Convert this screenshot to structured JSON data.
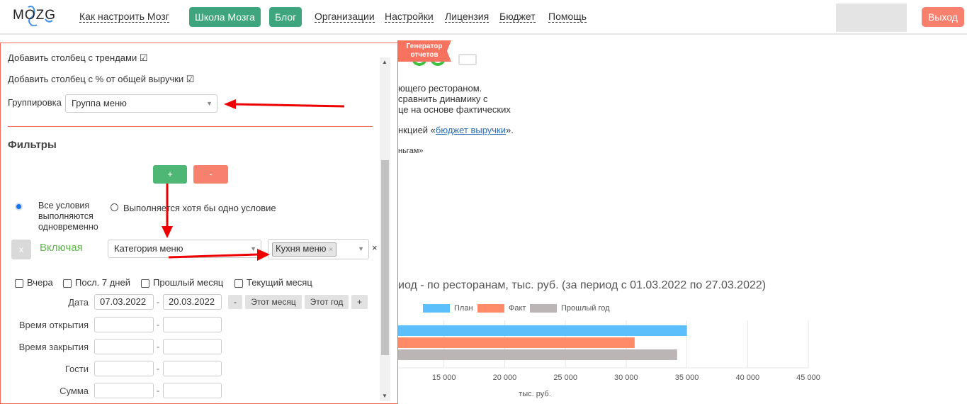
{
  "header": {
    "logo": "MOZG",
    "links": [
      "Как настроить Мозг",
      "Организации",
      "Настройки",
      "Лицензия",
      "Бюджет",
      "Помощь"
    ],
    "buttons": [
      "Школа Мозга",
      "Блог"
    ],
    "logout": "Выход"
  },
  "background": {
    "badge": "Генератор отчетов",
    "lines": [
      "ющего рестораном.",
      "сравнить динамику с",
      "це на основе фактических"
    ],
    "link_prefix": "нкцией «",
    "link": "бюджет выручки",
    "link_suffix": "».",
    "line5": "ньгам»"
  },
  "panel": {
    "trend_col": "Добавить столбец с трендами",
    "pct_col": "Добавить столбец с % от общей выручки",
    "grouping_label": "Группировка",
    "grouping_value": "Группа меню",
    "filters_title": "Фильтры",
    "add": "+",
    "remove": "-",
    "radio_all": "Все условия выполняются одновременно",
    "radio_any": "Выполняется хотя бы одно условие",
    "radio_selected": "all",
    "remove_filter": "x",
    "including": "Включая",
    "filter_field": "Категория меню",
    "filter_tag": "Кухня меню",
    "clear": "×",
    "quick": [
      "Вчера",
      "Посл. 7 дней",
      "Прошлый месяц",
      "Текущий месяц"
    ],
    "date_label": "Дата",
    "date_from": "07.03.2022",
    "date_to": "20.03.2022",
    "date_btns": [
      "-",
      "Этот месяц",
      "Этот год",
      "+"
    ],
    "ranges": [
      "Время открытия",
      "Время закрытия",
      "Гости",
      "Сумма"
    ],
    "range_sep": "-"
  },
  "chart_data": {
    "type": "bar",
    "orientation": "horizontal",
    "title": "иод - по ресторанам, тыс. руб. (за период с 01.03.2022 по 27.03.2022)",
    "xlabel": "тыс. руб.",
    "xticks": [
      "15 000",
      "20 000",
      "25 000",
      "30 000",
      "35 000",
      "40 000",
      "45 000"
    ],
    "xlim": [
      10000,
      45000
    ],
    "legend": "top",
    "grid": true,
    "series": [
      {
        "name": "План",
        "values": [
          35000
        ],
        "color": "#5bbffc"
      },
      {
        "name": "Факт",
        "values": [
          30700
        ],
        "color": "#ff8b68"
      },
      {
        "name": "Прошлый год",
        "values": [
          34200
        ],
        "color": "#bbb6b5"
      }
    ]
  }
}
